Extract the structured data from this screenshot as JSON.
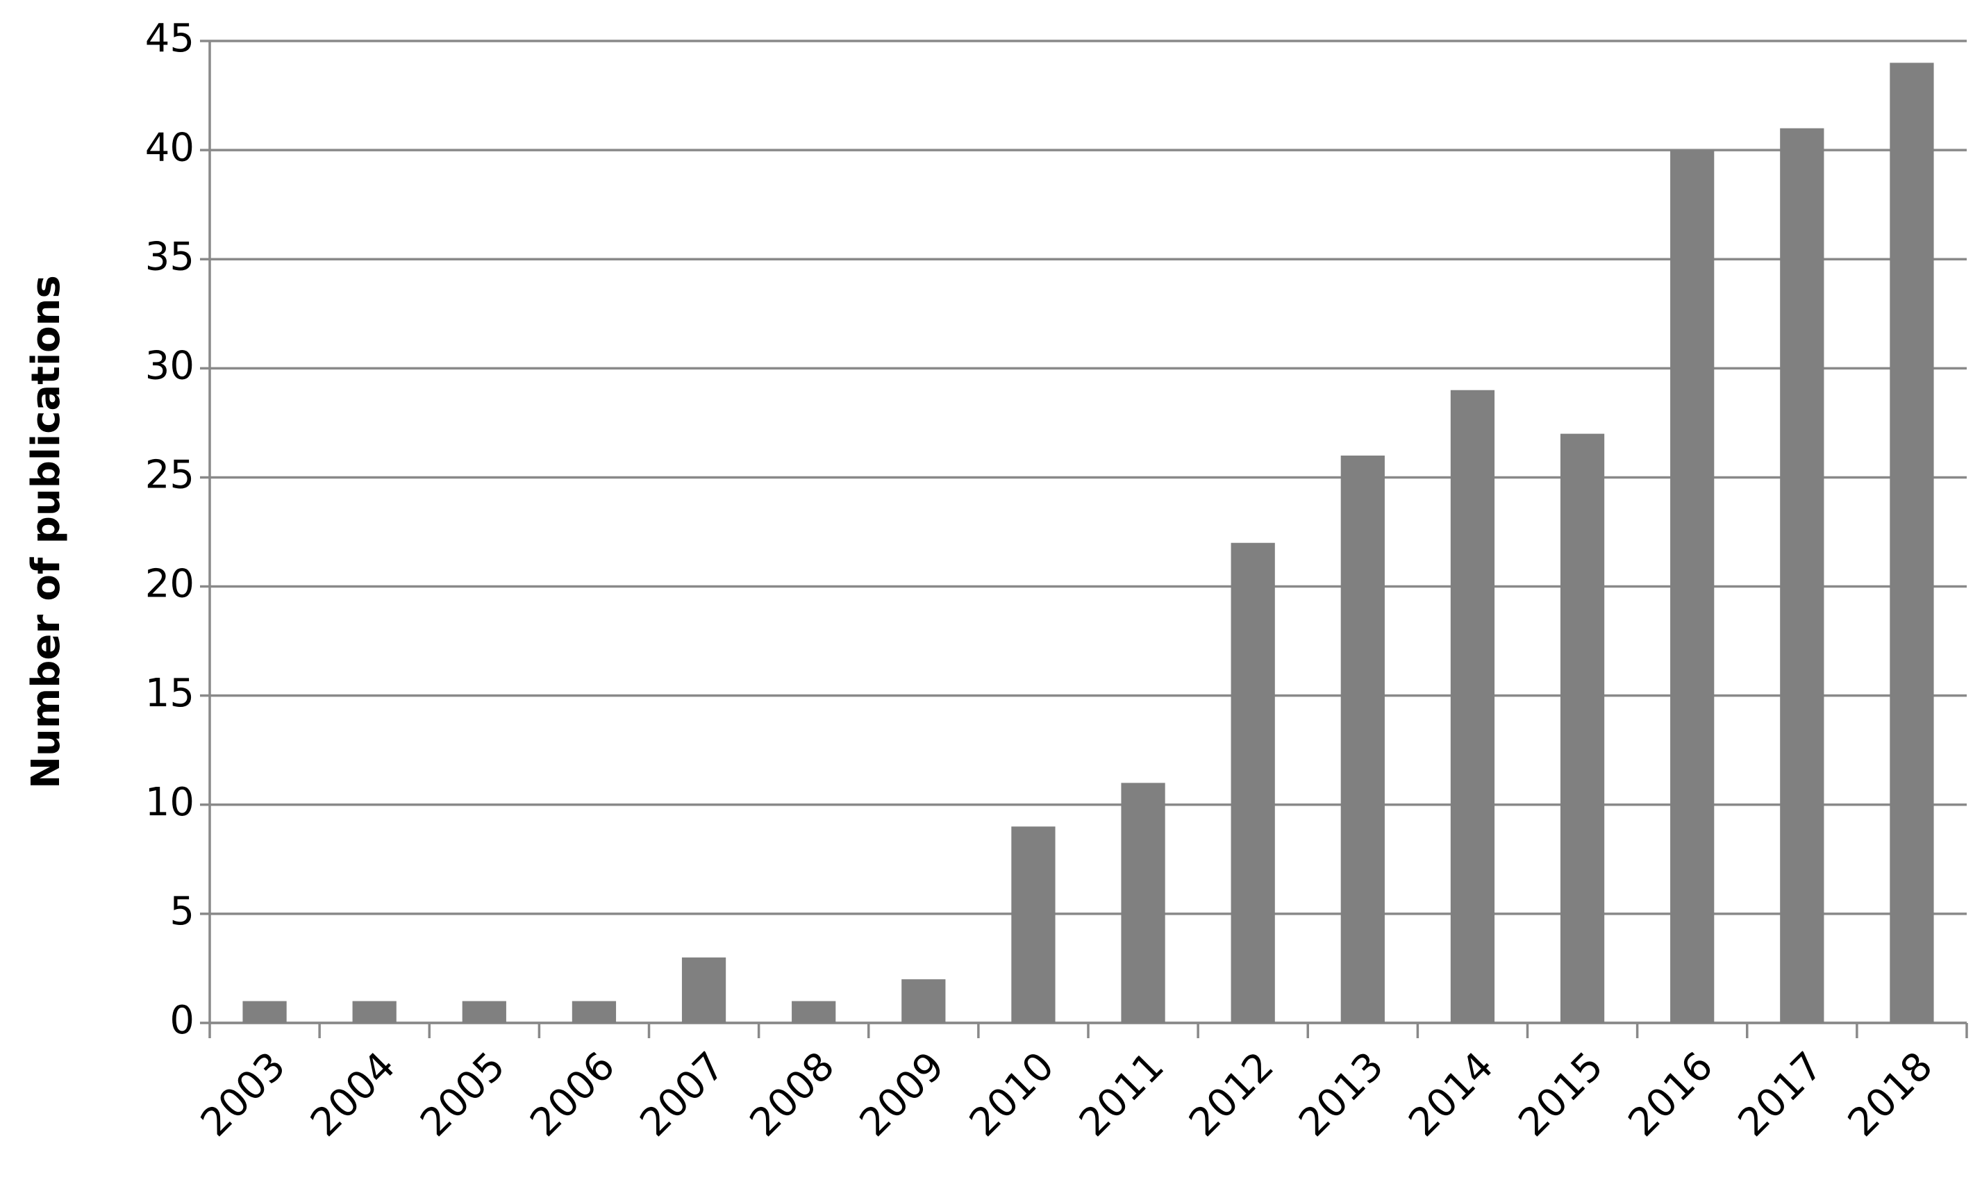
{
  "chart_data": {
    "type": "bar",
    "ylabel": "Number of publications",
    "categories": [
      "2003",
      "2004",
      "2005",
      "2006",
      "2007",
      "2008",
      "2009",
      "2010",
      "2011",
      "2012",
      "2013",
      "2014",
      "2015",
      "2016",
      "2017",
      "2018"
    ],
    "values": [
      1,
      1,
      1,
      1,
      3,
      1,
      2,
      9,
      11,
      22,
      26,
      29,
      27,
      40,
      41,
      44
    ],
    "color": "#808080",
    "ylim": [
      0,
      45
    ],
    "yticks": [
      0,
      5,
      10,
      15,
      20,
      25,
      30,
      35,
      40,
      45
    ],
    "grid": true
  }
}
